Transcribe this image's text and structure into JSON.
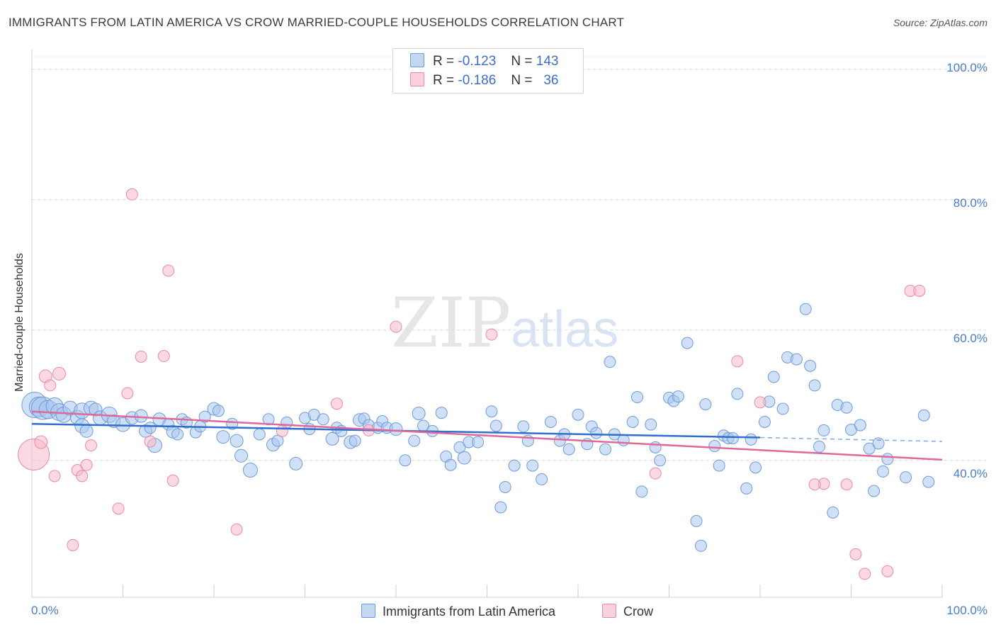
{
  "title": "IMMIGRANTS FROM LATIN AMERICA VS CROW MARRIED-COUPLE HOUSEHOLDS CORRELATION CHART",
  "source": "Source: ZipAtlas.com",
  "watermark": {
    "main": "ZIP",
    "sub": "atlas"
  },
  "legend": {
    "rows": [
      {
        "r_label": "R =",
        "r_value": "-0.123",
        "n_label": "N =",
        "n_value": "143",
        "color": "#a9c7ee"
      },
      {
        "r_label": "R =",
        "r_value": "-0.186",
        "n_label": "N =",
        "n_value": "36",
        "color": "#f5b9cb"
      }
    ]
  },
  "colors": {
    "blue_fill": "#a9c7ee",
    "blue_stroke": "#6f9bd8",
    "blue_line": "#2e6fcf",
    "pink_fill": "#f5b9cb",
    "pink_stroke": "#e98aa8",
    "pink_line": "#e0689a",
    "axis_text": "#4a7cc7"
  },
  "chart_data": {
    "type": "scatter",
    "title": "IMMIGRANTS FROM LATIN AMERICA VS CROW MARRIED-COUPLE HOUSEHOLDS CORRELATION CHART",
    "xlabel": "",
    "ylabel": "Married-couple Households",
    "xlim": [
      0,
      100
    ],
    "ylim": [
      19,
      103
    ],
    "x_tick_labels": [
      "0.0%",
      "100.0%"
    ],
    "y_ticks": [
      40,
      60,
      80,
      100
    ],
    "y_tick_labels": [
      "40.0%",
      "60.0%",
      "80.0%",
      "100.0%"
    ],
    "grid": true,
    "series": [
      {
        "name": "Immigrants from Latin America",
        "color": "#a9c7ee",
        "r": -0.123,
        "n": 143,
        "trend": {
          "x": [
            0,
            80
          ],
          "y": [
            45.6,
            43.5
          ],
          "dashed_to": [
            100,
            42.9
          ]
        },
        "points": [
          [
            0.3,
            48.5,
            18
          ],
          [
            0.8,
            48.2,
            14
          ],
          [
            1.2,
            48.0,
            16
          ],
          [
            1.8,
            47.8,
            13
          ],
          [
            2.5,
            48.3,
            12
          ],
          [
            3.0,
            47.4,
            12
          ],
          [
            3.5,
            47.0,
            11
          ],
          [
            4.2,
            48.0,
            10
          ],
          [
            5.0,
            46.6,
            10
          ],
          [
            5.5,
            47.6,
            11
          ],
          [
            6.5,
            48.0,
            10
          ],
          [
            7.0,
            47.8,
            9
          ],
          [
            5.5,
            45.3,
            10
          ],
          [
            6.0,
            44.5,
            9
          ],
          [
            7.5,
            46.5,
            10
          ],
          [
            8.5,
            47.0,
            11
          ],
          [
            9.0,
            46.0,
            9
          ],
          [
            10.0,
            45.5,
            10
          ],
          [
            11.0,
            46.5,
            9
          ],
          [
            12.0,
            46.8,
            9
          ],
          [
            12.5,
            44.5,
            9
          ],
          [
            13.0,
            45.0,
            8
          ],
          [
            13.5,
            42.3,
            10
          ],
          [
            14.0,
            46.3,
            9
          ],
          [
            15.0,
            45.5,
            8
          ],
          [
            15.5,
            44.4,
            9
          ],
          [
            16.0,
            44.0,
            8
          ],
          [
            16.5,
            46.3,
            8
          ],
          [
            17.0,
            45.8,
            8
          ],
          [
            18.0,
            44.3,
            8
          ],
          [
            18.5,
            45.2,
            8
          ],
          [
            19.0,
            46.7,
            8
          ],
          [
            20.0,
            47.9,
            9
          ],
          [
            20.5,
            47.6,
            8
          ],
          [
            21.0,
            43.6,
            9
          ],
          [
            22.0,
            45.6,
            8
          ],
          [
            22.5,
            43.0,
            9
          ],
          [
            23.0,
            40.7,
            9
          ],
          [
            24.0,
            38.5,
            10
          ],
          [
            25.0,
            44.0,
            8
          ],
          [
            26.0,
            46.3,
            8
          ],
          [
            26.5,
            42.4,
            9
          ],
          [
            27.0,
            43.0,
            8
          ],
          [
            28.0,
            45.8,
            8
          ],
          [
            29.0,
            39.5,
            9
          ],
          [
            30.0,
            46.5,
            8
          ],
          [
            30.5,
            44.8,
            8
          ],
          [
            31.0,
            47.0,
            8
          ],
          [
            32.0,
            46.3,
            8
          ],
          [
            33.0,
            43.3,
            9
          ],
          [
            33.5,
            45.0,
            8
          ],
          [
            34.0,
            44.5,
            8
          ],
          [
            35.0,
            42.8,
            9
          ],
          [
            35.5,
            43.0,
            8
          ],
          [
            36.0,
            46.2,
            9
          ],
          [
            36.5,
            46.4,
            8
          ],
          [
            37.0,
            45.4,
            8
          ],
          [
            38.0,
            45.0,
            8
          ],
          [
            38.5,
            46.0,
            8
          ],
          [
            39.0,
            45.0,
            8
          ],
          [
            40.0,
            44.8,
            9
          ],
          [
            41.0,
            40.0,
            8
          ],
          [
            42.0,
            43.0,
            8
          ],
          [
            42.5,
            47.2,
            9
          ],
          [
            43.0,
            45.3,
            8
          ],
          [
            44.0,
            44.5,
            8
          ],
          [
            45.0,
            47.3,
            8
          ],
          [
            45.5,
            40.6,
            8
          ],
          [
            46.0,
            39.3,
            8
          ],
          [
            47.0,
            42.0,
            8
          ],
          [
            47.5,
            40.4,
            9
          ],
          [
            48.0,
            42.8,
            8
          ],
          [
            49.0,
            42.8,
            8
          ],
          [
            50.5,
            47.5,
            8
          ],
          [
            51.0,
            45.3,
            8
          ],
          [
            51.5,
            32.8,
            8
          ],
          [
            52.0,
            35.9,
            8
          ],
          [
            53.0,
            39.2,
            8
          ],
          [
            54.0,
            45.2,
            8
          ],
          [
            54.5,
            43.0,
            8
          ],
          [
            55.0,
            39.2,
            8
          ],
          [
            56.0,
            37.1,
            8
          ],
          [
            57.0,
            45.9,
            8
          ],
          [
            58.0,
            43.0,
            8
          ],
          [
            58.5,
            44.0,
            8
          ],
          [
            59.0,
            41.7,
            8
          ],
          [
            60.0,
            47.0,
            8
          ],
          [
            61.0,
            42.5,
            8
          ],
          [
            61.5,
            45.2,
            8
          ],
          [
            62.0,
            44.2,
            8
          ],
          [
            63.0,
            41.7,
            8
          ],
          [
            63.5,
            55.1,
            8
          ],
          [
            64.0,
            44.0,
            8
          ],
          [
            65.0,
            43.1,
            8
          ],
          [
            66.0,
            45.9,
            8
          ],
          [
            66.5,
            49.7,
            8
          ],
          [
            67.0,
            35.2,
            8
          ],
          [
            68.0,
            45.5,
            8
          ],
          [
            68.5,
            42.0,
            8
          ],
          [
            69.0,
            40.0,
            8
          ],
          [
            70.0,
            49.6,
            8
          ],
          [
            70.5,
            49.1,
            8
          ],
          [
            71.0,
            49.8,
            8
          ],
          [
            72.0,
            58.0,
            8
          ],
          [
            73.0,
            30.7,
            8
          ],
          [
            73.5,
            26.9,
            8
          ],
          [
            74.0,
            48.6,
            8
          ],
          [
            75.0,
            42.2,
            8
          ],
          [
            75.5,
            39.2,
            8
          ],
          [
            76.0,
            43.8,
            8
          ],
          [
            76.5,
            43.4,
            8
          ],
          [
            77.0,
            43.4,
            8
          ],
          [
            77.5,
            50.2,
            8
          ],
          [
            78.5,
            35.7,
            8
          ],
          [
            79.0,
            43.2,
            8
          ],
          [
            79.5,
            38.9,
            8
          ],
          [
            80.5,
            45.9,
            8
          ],
          [
            81.0,
            49.0,
            8
          ],
          [
            81.5,
            52.8,
            8
          ],
          [
            82.5,
            47.9,
            8
          ],
          [
            83.0,
            55.8,
            8
          ],
          [
            84.0,
            55.5,
            8
          ],
          [
            85.0,
            63.2,
            8
          ],
          [
            85.5,
            54.5,
            8
          ],
          [
            86.0,
            51.5,
            8
          ],
          [
            86.5,
            42.1,
            8
          ],
          [
            87.0,
            44.6,
            8
          ],
          [
            88.0,
            32.0,
            8
          ],
          [
            88.5,
            48.5,
            8
          ],
          [
            89.5,
            48.1,
            8
          ],
          [
            90.0,
            44.7,
            8
          ],
          [
            91.0,
            45.4,
            8
          ],
          [
            92.0,
            41.8,
            8
          ],
          [
            92.5,
            35.3,
            8
          ],
          [
            93.0,
            42.6,
            8
          ],
          [
            93.5,
            38.3,
            8
          ],
          [
            94.0,
            40.2,
            8
          ],
          [
            96.0,
            37.4,
            8
          ],
          [
            98.0,
            46.9,
            8
          ],
          [
            98.5,
            36.7,
            8
          ]
        ]
      },
      {
        "name": "Crow",
        "color": "#f5b9cb",
        "r": -0.186,
        "n": 36,
        "trend": {
          "x": [
            0,
            100
          ],
          "y": [
            47.5,
            40.1
          ]
        },
        "points": [
          [
            0.2,
            40.9,
            22
          ],
          [
            1.0,
            42.8,
            9
          ],
          [
            1.5,
            52.9,
            9
          ],
          [
            2.0,
            51.5,
            8
          ],
          [
            2.5,
            37.6,
            8
          ],
          [
            3.0,
            53.3,
            9
          ],
          [
            4.5,
            27.0,
            8
          ],
          [
            5.0,
            38.5,
            8
          ],
          [
            5.5,
            37.6,
            8
          ],
          [
            6.0,
            39.3,
            8
          ],
          [
            6.5,
            42.3,
            8
          ],
          [
            9.5,
            32.6,
            8
          ],
          [
            10.5,
            50.3,
            8
          ],
          [
            11.0,
            80.8,
            8
          ],
          [
            12.0,
            55.9,
            8
          ],
          [
            13.0,
            42.9,
            8
          ],
          [
            14.5,
            56.0,
            8
          ],
          [
            15.0,
            69.1,
            8
          ],
          [
            15.5,
            36.9,
            8
          ],
          [
            22.5,
            29.4,
            8
          ],
          [
            27.5,
            44.5,
            8
          ],
          [
            33.5,
            48.7,
            8
          ],
          [
            37.0,
            44.6,
            8
          ],
          [
            40.0,
            60.5,
            8
          ],
          [
            50.5,
            59.3,
            8
          ],
          [
            68.5,
            38.0,
            8
          ],
          [
            77.5,
            55.2,
            8
          ],
          [
            80.0,
            48.9,
            8
          ],
          [
            87.0,
            36.4,
            8
          ],
          [
            89.5,
            36.3,
            8
          ],
          [
            90.5,
            25.6,
            8
          ],
          [
            91.5,
            22.6,
            8
          ],
          [
            94.0,
            23.0,
            8
          ],
          [
            96.5,
            66.0,
            8
          ],
          [
            97.5,
            66.0,
            8
          ],
          [
            86.0,
            36.3,
            8
          ]
        ]
      }
    ]
  },
  "bottom_legend": [
    {
      "label": "Immigrants from Latin America",
      "color": "#a9c7ee"
    },
    {
      "label": "Crow",
      "color": "#f5b9cb"
    }
  ]
}
